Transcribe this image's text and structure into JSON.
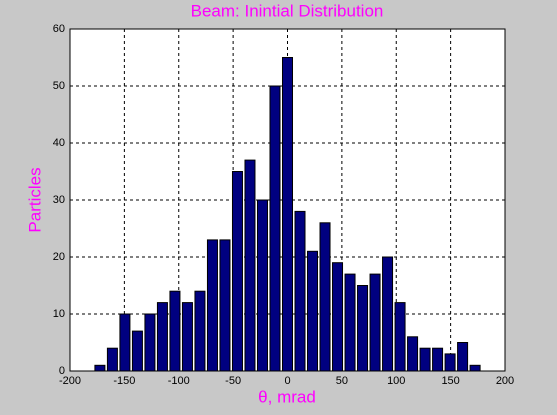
{
  "chart_data": {
    "type": "histogram",
    "title": "Beam: Inintial Distribution",
    "x_label": "θ, mrad",
    "y_label": "Particles",
    "bins": [
      -178.25,
      -166.75,
      -155.25,
      -143.75,
      -132.25,
      -120.75,
      -109.25,
      -97.75,
      -86.25,
      -74.75,
      -63.25,
      -51.75,
      -40.25,
      -28.75,
      -17.25,
      -5.75,
      5.75,
      17.25,
      28.75,
      40.25,
      51.75,
      63.25,
      74.75,
      86.25,
      97.75,
      109.25,
      120.75,
      132.25,
      143.75,
      155.25,
      166.75,
      178.25
    ],
    "values": [
      1,
      4,
      10,
      7,
      10,
      12,
      14,
      12,
      14,
      23,
      23,
      35,
      37,
      30,
      50,
      55,
      28,
      21,
      26,
      19,
      17,
      15,
      17,
      20,
      12,
      6,
      4,
      4,
      3,
      5,
      1
    ],
    "color": "#000080",
    "xlim": [
      -200,
      200
    ],
    "xticks": [
      -200,
      -150,
      -100,
      -50,
      0,
      50,
      100,
      150,
      200
    ],
    "ylim": [
      0,
      60
    ],
    "yticks": [
      0,
      10,
      20,
      30,
      40,
      50,
      60
    ],
    "grid": true
  }
}
